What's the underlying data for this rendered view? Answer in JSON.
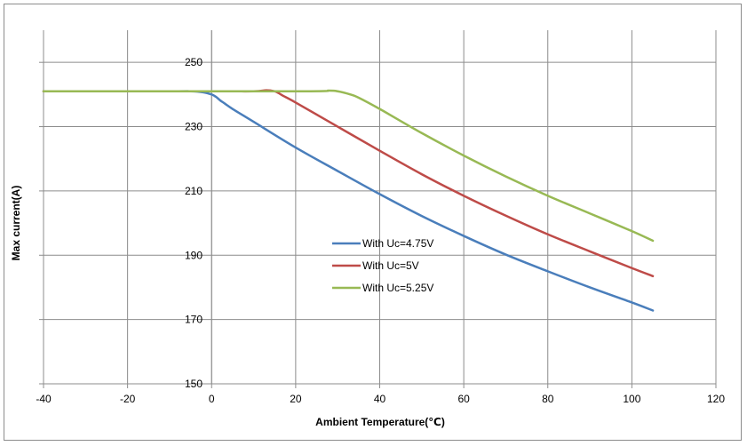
{
  "chart_data": {
    "type": "line",
    "xlabel": "Ambient Temperature(℃)",
    "ylabel": "Max current(A)",
    "xlim": [
      -40,
      120
    ],
    "ylim": [
      150,
      260
    ],
    "x_ticks": [
      -40,
      -20,
      0,
      20,
      40,
      60,
      80,
      100,
      120
    ],
    "y_ticks": [
      150,
      170,
      190,
      210,
      230,
      250
    ],
    "grid": true,
    "legend_position": "center-right",
    "series": [
      {
        "name": "With Uc=4.75V",
        "color": "#4a7ebb",
        "points": [
          [
            -40,
            241
          ],
          [
            -10,
            241
          ],
          [
            -5,
            241
          ],
          [
            -2,
            240.7
          ],
          [
            0,
            240
          ],
          [
            1,
            239.3
          ],
          [
            2,
            238.2
          ],
          [
            3,
            237.3
          ],
          [
            5,
            235.5
          ],
          [
            10,
            231.5
          ],
          [
            20,
            223.5
          ],
          [
            30,
            216.2
          ],
          [
            40,
            209
          ],
          [
            50,
            202.2
          ],
          [
            60,
            196
          ],
          [
            70,
            190.2
          ],
          [
            80,
            185
          ],
          [
            90,
            180
          ],
          [
            100,
            175.3
          ],
          [
            105,
            172.8
          ]
        ]
      },
      {
        "name": "With Uc=5V",
        "color": "#be4b48",
        "points": [
          [
            -40,
            241
          ],
          [
            0,
            241
          ],
          [
            10,
            241
          ],
          [
            13,
            241.3
          ],
          [
            15,
            241
          ],
          [
            16,
            240.4
          ],
          [
            17,
            239.6
          ],
          [
            20,
            237.5
          ],
          [
            30,
            230
          ],
          [
            40,
            222.5
          ],
          [
            50,
            215.2
          ],
          [
            60,
            208.5
          ],
          [
            70,
            202.3
          ],
          [
            80,
            196.5
          ],
          [
            90,
            191.2
          ],
          [
            100,
            186
          ],
          [
            105,
            183.5
          ]
        ]
      },
      {
        "name": "With Uc=5.25V",
        "color": "#98b954",
        "points": [
          [
            -40,
            241
          ],
          [
            20,
            241
          ],
          [
            28,
            241.2
          ],
          [
            30,
            241
          ],
          [
            33,
            240
          ],
          [
            35,
            239
          ],
          [
            40,
            235.5
          ],
          [
            50,
            228
          ],
          [
            60,
            221
          ],
          [
            70,
            214.5
          ],
          [
            80,
            208.5
          ],
          [
            90,
            203
          ],
          [
            100,
            197.5
          ],
          [
            105,
            194.5
          ]
        ]
      }
    ]
  }
}
